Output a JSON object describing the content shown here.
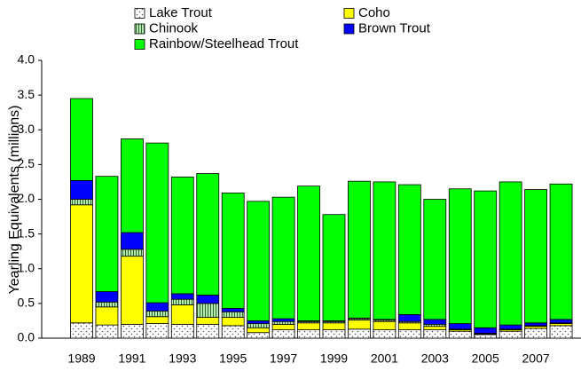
{
  "chart_data": {
    "type": "stacked_bar",
    "y_label": "Yearling Equivalents (millions)",
    "categories": [
      "1989",
      null,
      "1991",
      null,
      "1993",
      null,
      "1995",
      null,
      "1997",
      null,
      "1999",
      null,
      "2001",
      null,
      "2003",
      null,
      "2005",
      null,
      "2007",
      null
    ],
    "series": [
      {
        "name": "Lake Trout",
        "color": "#ffffff",
        "hatch": "dots",
        "values": [
          0.22,
          0.19,
          0.2,
          0.21,
          0.2,
          0.2,
          0.18,
          0.08,
          0.12,
          0.12,
          0.12,
          0.13,
          0.12,
          0.12,
          0.12,
          0.1,
          0.05,
          0.1,
          0.14,
          0.18
        ]
      },
      {
        "name": "Coho",
        "color": "#ffff00",
        "values": [
          1.7,
          0.26,
          0.98,
          0.1,
          0.28,
          0.1,
          0.12,
          0.07,
          0.08,
          0.1,
          0.1,
          0.13,
          0.12,
          0.1,
          0.05,
          0.02,
          0.01,
          0.02,
          0.03,
          0.03
        ]
      },
      {
        "name": "Chinook",
        "color": "#b8e6b0",
        "hatch": "vertical",
        "values": [
          0.08,
          0.07,
          0.1,
          0.08,
          0.08,
          0.2,
          0.08,
          0.06,
          0.04,
          0.02,
          0.02,
          0.02,
          0.02,
          0.02,
          0.03,
          0.01,
          0.01,
          0.01,
          0.01,
          0.01
        ]
      },
      {
        "name": "Brown Trout",
        "color": "#0000ff",
        "values": [
          0.27,
          0.15,
          0.24,
          0.12,
          0.08,
          0.12,
          0.05,
          0.04,
          0.04,
          0.01,
          0.01,
          0.01,
          0.01,
          0.1,
          0.07,
          0.08,
          0.08,
          0.06,
          0.04,
          0.05
        ]
      },
      {
        "name": "Rainbow/Steelhead Trout",
        "color": "#00ff00",
        "values": [
          1.18,
          1.66,
          1.35,
          2.3,
          1.68,
          1.75,
          1.66,
          1.72,
          1.75,
          1.94,
          1.53,
          1.97,
          1.98,
          1.87,
          1.73,
          1.94,
          1.97,
          2.06,
          1.92,
          1.95
        ]
      }
    ],
    "ylim": [
      0,
      4
    ],
    "yticks": [
      {
        "value": 0,
        "label": "0.0"
      },
      0.5,
      {
        "value": 1,
        "label": "1.0"
      },
      1.5,
      {
        "value": 2,
        "label": "2.0"
      },
      2.5,
      {
        "value": 3,
        "label": "3.0"
      },
      3.5,
      {
        "value": 4,
        "label": "4.0"
      }
    ],
    "grid": false
  }
}
